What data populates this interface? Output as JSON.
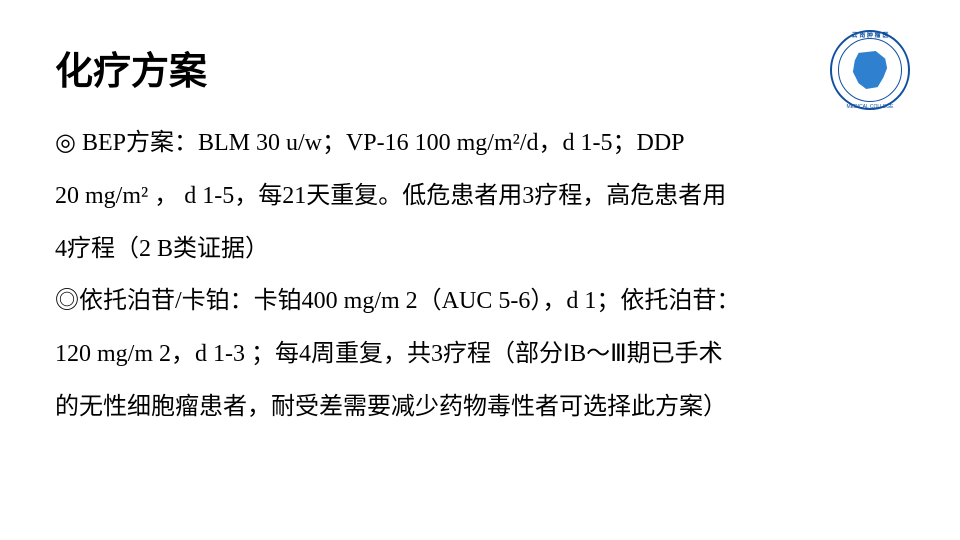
{
  "title": "化疗方案",
  "content": {
    "line1": "◎ BEP方案：BLM 30 u/w；VP-16  100 mg/m²/d，d 1-5；DDP",
    "line2": "20 mg/m² ， d 1-5，每21天重复。低危患者用3疗程，高危患者用",
    "line3": "4疗程（2 B类证据）",
    "line4": "◎依托泊苷/卡铂：卡铂400 mg/m 2（AUC 5-6），d 1；依托泊苷：",
    "line5": "120 mg/m 2，d 1-3 ；每4周重复，共3疗程（部分ⅠB～Ⅲ期已手术",
    "line6": "的无性细胞瘤患者，耐受差需要减少药物毒性者可选择此方案）"
  },
  "logo": {
    "ring_top": "云 南 肿 瘤 医",
    "ring_bottom": "MEDICAL COLLEGE",
    "border_color": "#1050a0",
    "fill_color": "#3080d0"
  },
  "style": {
    "title_fontsize": 38,
    "body_fontsize": 24,
    "line_height": 2.2,
    "background": "#ffffff",
    "text_color": "#000000"
  }
}
